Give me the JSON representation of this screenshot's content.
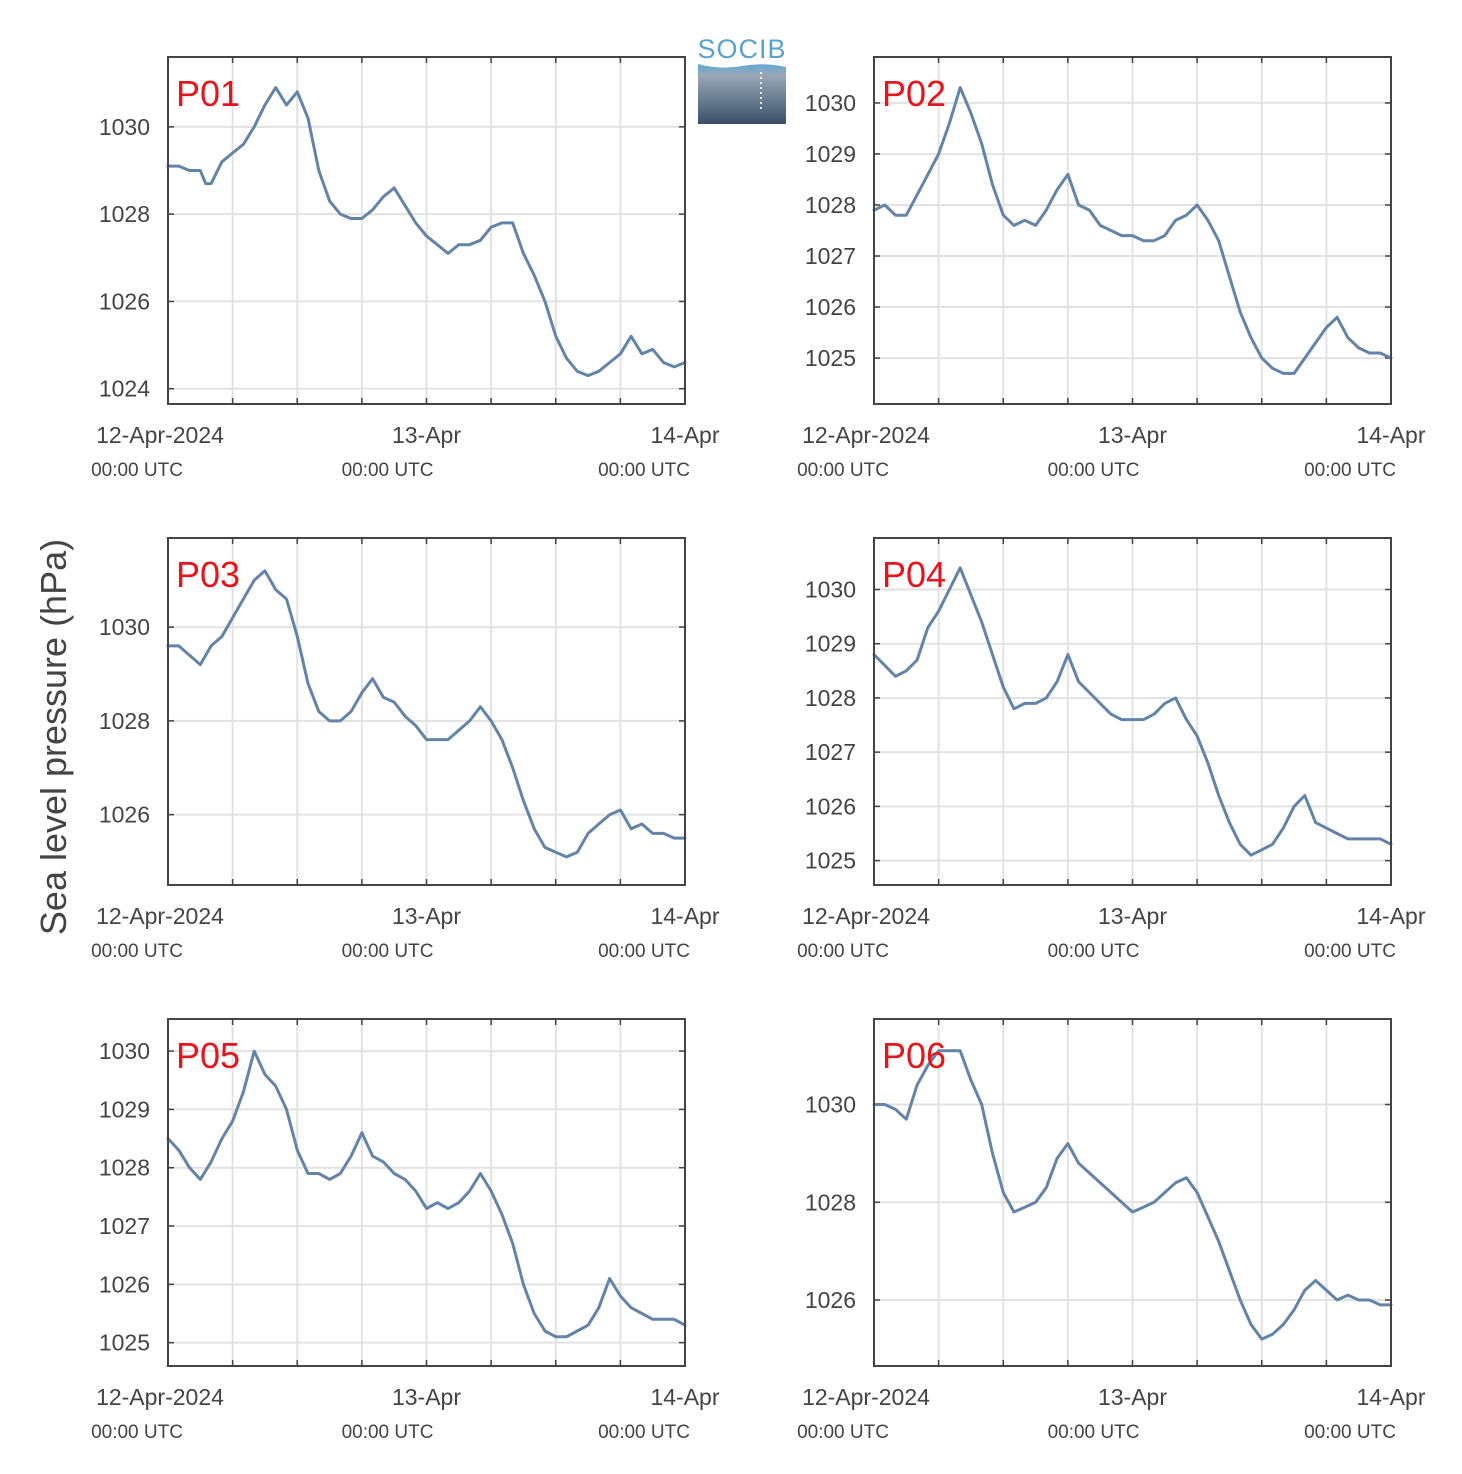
{
  "figure": {
    "ylabel": "Sea level pressure (hPa)",
    "logo_text": "SOCIB",
    "x_tick_labels": [
      {
        "main": "12-Apr-2024",
        "sub": "00:00 UTC"
      },
      {
        "main": "13-Apr",
        "sub": "00:00 UTC"
      },
      {
        "main": "14-Apr",
        "sub": "00:00 UTC"
      }
    ],
    "line_color": "#6384a8",
    "label_color": "#e8141c"
  },
  "chart_data": [
    {
      "type": "line",
      "panel": "P01",
      "ylabel": "Sea level pressure (hPa)",
      "xlim": [
        "2024-04-12 00:00",
        "2024-04-14 00:00"
      ],
      "x_unit_hours": true,
      "ylim": [
        1023.65,
        1031.6
      ],
      "yticks": [
        1024,
        1026,
        1028,
        1030
      ],
      "grid": true,
      "series": [
        {
          "x": [
            0,
            1,
            2,
            3,
            3.5,
            4,
            5,
            6,
            7,
            8,
            9,
            10,
            11,
            12,
            13,
            14,
            15,
            16,
            17,
            18,
            19,
            20,
            21,
            22,
            23,
            24,
            25,
            26,
            27,
            28,
            29,
            30,
            31,
            32,
            33,
            34,
            35,
            36,
            37,
            38,
            39,
            40,
            41,
            42,
            43,
            44,
            45,
            46,
            47,
            48
          ],
          "values": [
            1029.1,
            1029.1,
            1029.0,
            1029.0,
            1028.7,
            1028.7,
            1029.2,
            1029.4,
            1029.6,
            1030.0,
            1030.5,
            1030.9,
            1030.5,
            1030.8,
            1030.2,
            1029.0,
            1028.3,
            1028.0,
            1027.9,
            1027.9,
            1028.1,
            1028.4,
            1028.6,
            1028.2,
            1027.8,
            1027.5,
            1027.3,
            1027.1,
            1027.3,
            1027.3,
            1027.4,
            1027.7,
            1027.8,
            1027.8,
            1027.1,
            1026.6,
            1026.0,
            1025.2,
            1024.7,
            1024.4,
            1024.3,
            1024.4,
            1024.6,
            1024.8,
            1025.2,
            1024.8,
            1024.9,
            1024.6,
            1024.5,
            1024.6
          ]
        }
      ]
    },
    {
      "type": "line",
      "panel": "P02",
      "ylabel": "Sea level pressure (hPa)",
      "xlim": [
        "2024-04-12 00:00",
        "2024-04-14 00:00"
      ],
      "x_unit_hours": true,
      "ylim": [
        1024.1,
        1030.9
      ],
      "yticks": [
        1025,
        1026,
        1027,
        1028,
        1029,
        1030
      ],
      "grid": true,
      "series": [
        {
          "x": [
            0,
            1,
            2,
            3,
            4,
            5,
            6,
            7,
            8,
            9,
            10,
            11,
            12,
            13,
            14,
            15,
            16,
            17,
            18,
            19,
            20,
            21,
            22,
            23,
            24,
            25,
            26,
            27,
            28,
            29,
            30,
            31,
            32,
            33,
            34,
            35,
            36,
            37,
            38,
            39,
            40,
            41,
            42,
            43,
            44,
            45,
            46,
            47,
            48
          ],
          "values": [
            1027.9,
            1028.0,
            1027.8,
            1027.8,
            1028.2,
            1028.6,
            1029.0,
            1029.6,
            1030.3,
            1029.8,
            1029.2,
            1028.4,
            1027.8,
            1027.6,
            1027.7,
            1027.6,
            1027.9,
            1028.3,
            1028.6,
            1028.0,
            1027.9,
            1027.6,
            1027.5,
            1027.4,
            1027.4,
            1027.3,
            1027.3,
            1027.4,
            1027.7,
            1027.8,
            1028.0,
            1027.7,
            1027.3,
            1026.6,
            1025.9,
            1025.4,
            1025.0,
            1024.8,
            1024.7,
            1024.7,
            1025.0,
            1025.3,
            1025.6,
            1025.8,
            1025.4,
            1025.2,
            1025.1,
            1025.1,
            1025.0
          ]
        }
      ]
    },
    {
      "type": "line",
      "panel": "P03",
      "ylabel": "Sea level pressure (hPa)",
      "xlim": [
        "2024-04-12 00:00",
        "2024-04-14 00:00"
      ],
      "x_unit_hours": true,
      "ylim": [
        1024.5,
        1031.9
      ],
      "yticks": [
        1026,
        1028,
        1030
      ],
      "grid": true,
      "series": [
        {
          "x": [
            0,
            1,
            2,
            3,
            4,
            5,
            6,
            7,
            8,
            9,
            10,
            11,
            12,
            13,
            14,
            15,
            16,
            17,
            18,
            19,
            20,
            21,
            22,
            23,
            24,
            25,
            26,
            27,
            28,
            29,
            30,
            31,
            32,
            33,
            34,
            35,
            36,
            37,
            38,
            39,
            40,
            41,
            42,
            43,
            44,
            45,
            46,
            47,
            48
          ],
          "values": [
            1029.6,
            1029.6,
            1029.4,
            1029.2,
            1029.6,
            1029.8,
            1030.2,
            1030.6,
            1031.0,
            1031.2,
            1030.8,
            1030.6,
            1029.8,
            1028.8,
            1028.2,
            1028.0,
            1028.0,
            1028.2,
            1028.6,
            1028.9,
            1028.5,
            1028.4,
            1028.1,
            1027.9,
            1027.6,
            1027.6,
            1027.6,
            1027.8,
            1028.0,
            1028.3,
            1028.0,
            1027.6,
            1027.0,
            1026.3,
            1025.7,
            1025.3,
            1025.2,
            1025.1,
            1025.2,
            1025.6,
            1025.8,
            1026.0,
            1026.1,
            1025.7,
            1025.8,
            1025.6,
            1025.6,
            1025.5,
            1025.5
          ]
        }
      ]
    },
    {
      "type": "line",
      "panel": "P04",
      "ylabel": "Sea level pressure (hPa)",
      "xlim": [
        "2024-04-12 00:00",
        "2024-04-14 00:00"
      ],
      "x_unit_hours": true,
      "ylim": [
        1024.55,
        1030.95
      ],
      "yticks": [
        1025,
        1026,
        1027,
        1028,
        1029,
        1030
      ],
      "grid": true,
      "series": [
        {
          "x": [
            0,
            1,
            2,
            3,
            4,
            5,
            6,
            7,
            8,
            9,
            10,
            11,
            12,
            13,
            14,
            15,
            16,
            17,
            18,
            19,
            20,
            21,
            22,
            23,
            24,
            25,
            26,
            27,
            28,
            29,
            30,
            31,
            32,
            33,
            34,
            35,
            36,
            37,
            38,
            39,
            40,
            41,
            42,
            43,
            44,
            45,
            46,
            47,
            48
          ],
          "values": [
            1028.8,
            1028.6,
            1028.4,
            1028.5,
            1028.7,
            1029.3,
            1029.6,
            1030.0,
            1030.4,
            1029.9,
            1029.4,
            1028.8,
            1028.2,
            1027.8,
            1027.9,
            1027.9,
            1028.0,
            1028.3,
            1028.8,
            1028.3,
            1028.1,
            1027.9,
            1027.7,
            1027.6,
            1027.6,
            1027.6,
            1027.7,
            1027.9,
            1028.0,
            1027.6,
            1027.3,
            1026.8,
            1026.2,
            1025.7,
            1025.3,
            1025.1,
            1025.2,
            1025.3,
            1025.6,
            1026.0,
            1026.2,
            1025.7,
            1025.6,
            1025.5,
            1025.4,
            1025.4,
            1025.4,
            1025.4,
            1025.3
          ]
        }
      ]
    },
    {
      "type": "line",
      "panel": "P05",
      "ylabel": "Sea level pressure (hPa)",
      "xlim": [
        "2024-04-12 00:00",
        "2024-04-14 00:00"
      ],
      "x_unit_hours": true,
      "ylim": [
        1024.6,
        1030.55
      ],
      "yticks": [
        1025,
        1026,
        1027,
        1028,
        1029,
        1030
      ],
      "grid": true,
      "series": [
        {
          "x": [
            0,
            1,
            2,
            3,
            4,
            5,
            6,
            7,
            8,
            9,
            10,
            11,
            12,
            13,
            14,
            15,
            16,
            17,
            18,
            19,
            20,
            21,
            22,
            23,
            24,
            25,
            26,
            27,
            28,
            29,
            30,
            31,
            32,
            33,
            34,
            35,
            36,
            37,
            38,
            39,
            40,
            41,
            42,
            43,
            44,
            45,
            46,
            47,
            48
          ],
          "values": [
            1028.5,
            1028.3,
            1028.0,
            1027.8,
            1028.1,
            1028.5,
            1028.8,
            1029.3,
            1030.0,
            1029.6,
            1029.4,
            1029.0,
            1028.3,
            1027.9,
            1027.9,
            1027.8,
            1027.9,
            1028.2,
            1028.6,
            1028.2,
            1028.1,
            1027.9,
            1027.8,
            1027.6,
            1027.3,
            1027.4,
            1027.3,
            1027.4,
            1027.6,
            1027.9,
            1027.6,
            1027.2,
            1026.7,
            1026.0,
            1025.5,
            1025.2,
            1025.1,
            1025.1,
            1025.2,
            1025.3,
            1025.6,
            1026.1,
            1025.8,
            1025.6,
            1025.5,
            1025.4,
            1025.4,
            1025.4,
            1025.3
          ]
        }
      ]
    },
    {
      "type": "line",
      "panel": "P06",
      "ylabel": "Sea level pressure (hPa)",
      "xlim": [
        "2024-04-12 00:00",
        "2024-04-14 00:00"
      ],
      "x_unit_hours": true,
      "ylim": [
        1024.65,
        1031.75
      ],
      "yticks": [
        1026,
        1028,
        1030
      ],
      "grid": true,
      "series": [
        {
          "x": [
            0,
            1,
            2,
            3,
            4,
            5,
            6,
            7,
            8,
            9,
            10,
            11,
            12,
            13,
            14,
            15,
            16,
            17,
            18,
            19,
            20,
            21,
            22,
            23,
            24,
            25,
            26,
            27,
            28,
            29,
            30,
            31,
            32,
            33,
            34,
            35,
            36,
            37,
            38,
            39,
            40,
            41,
            42,
            43,
            44,
            45,
            46,
            47,
            48
          ],
          "values": [
            1030.0,
            1030.0,
            1029.9,
            1029.7,
            1030.4,
            1030.8,
            1031.1,
            1031.1,
            1031.1,
            1030.5,
            1030.0,
            1029.0,
            1028.2,
            1027.8,
            1027.9,
            1028.0,
            1028.3,
            1028.9,
            1029.2,
            1028.8,
            1028.6,
            1028.4,
            1028.2,
            1028.0,
            1027.8,
            1027.9,
            1028.0,
            1028.2,
            1028.4,
            1028.5,
            1028.2,
            1027.7,
            1027.2,
            1026.6,
            1026.0,
            1025.5,
            1025.2,
            1025.3,
            1025.5,
            1025.8,
            1026.2,
            1026.4,
            1026.2,
            1026.0,
            1026.1,
            1026.0,
            1026.0,
            1025.9,
            1025.9
          ]
        }
      ]
    }
  ]
}
